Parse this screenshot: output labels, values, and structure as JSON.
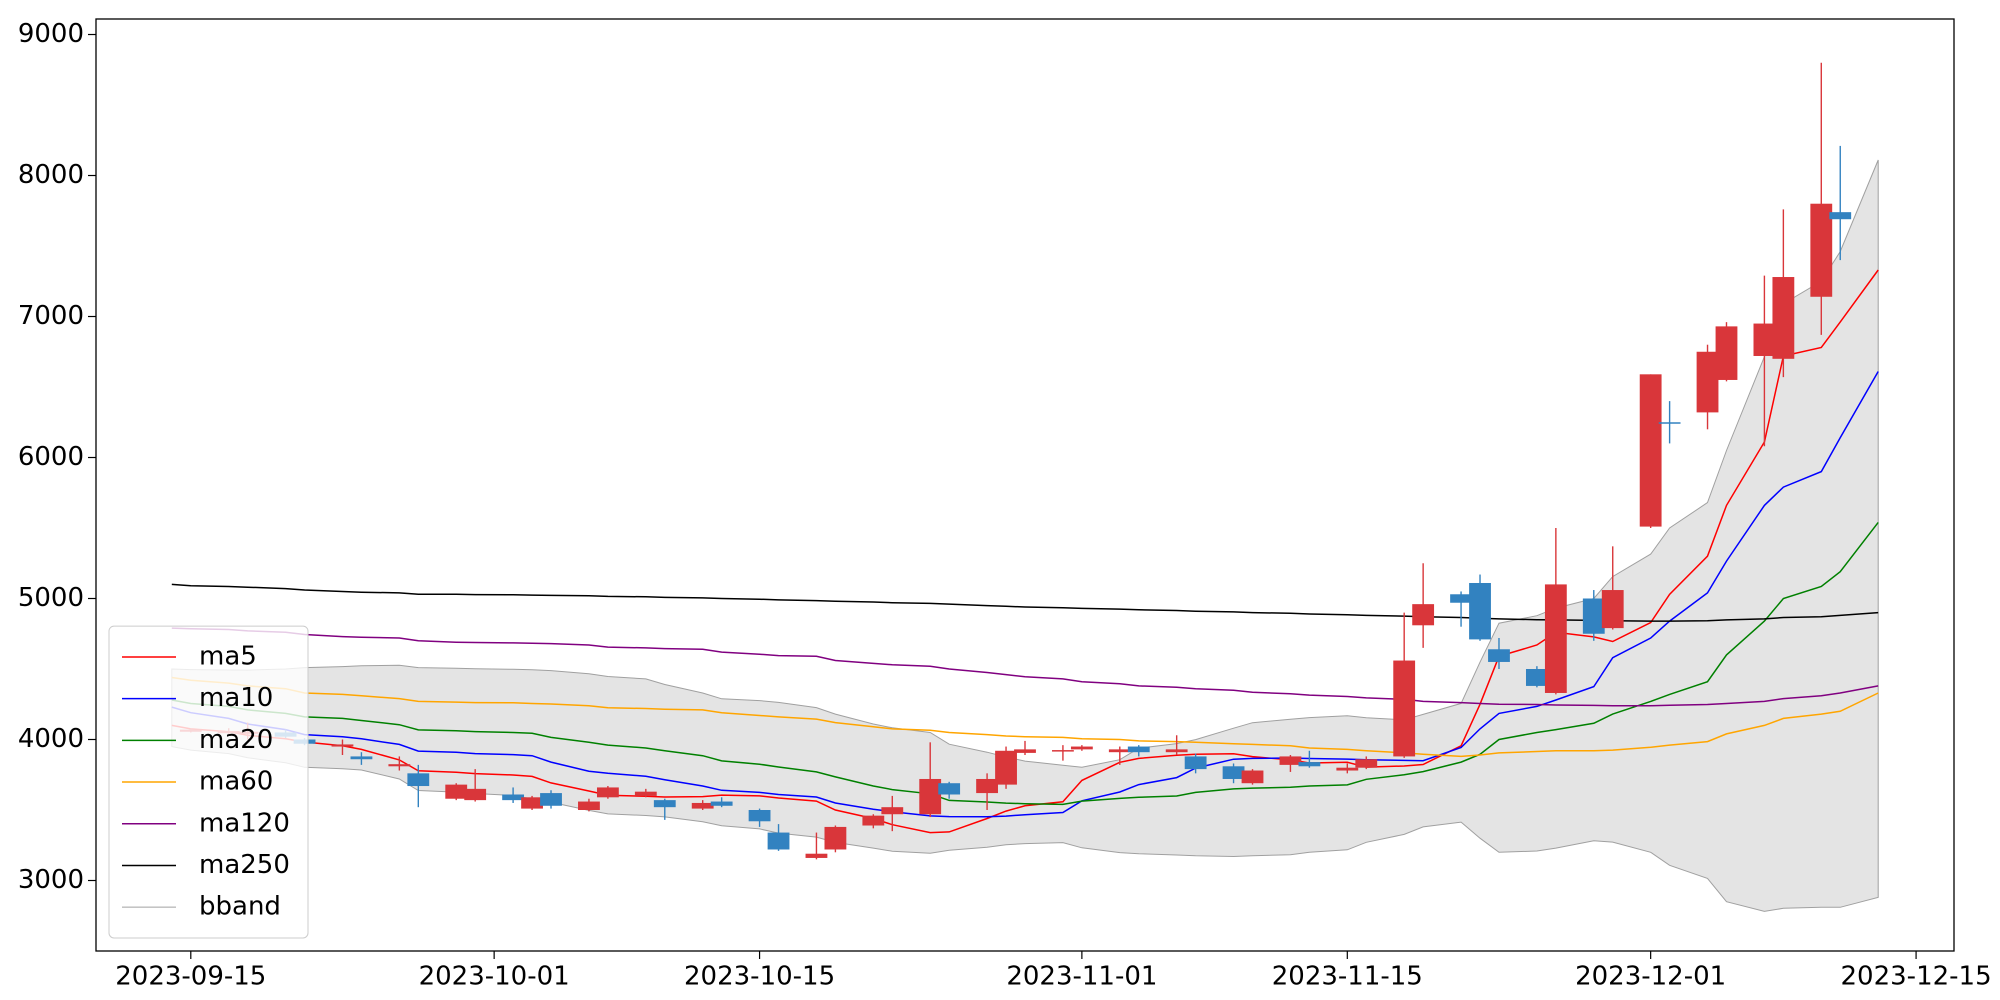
{
  "chart_data": {
    "type": "candlestick",
    "x": [
      "2023-09-14",
      "2023-09-15",
      "2023-09-17",
      "2023-09-18",
      "2023-09-20",
      "2023-09-21",
      "2023-09-23",
      "2023-09-24",
      "2023-09-26",
      "2023-09-27",
      "2023-09-29",
      "2023-09-30",
      "2023-10-02",
      "2023-10-03",
      "2023-10-04",
      "2023-10-06",
      "2023-10-07",
      "2023-10-09",
      "2023-10-10",
      "2023-10-12",
      "2023-10-13",
      "2023-10-15",
      "2023-10-16",
      "2023-10-18",
      "2023-10-19",
      "2023-10-21",
      "2023-10-22",
      "2023-10-24",
      "2023-10-25",
      "2023-10-27",
      "2023-10-28",
      "2023-10-29",
      "2023-10-31",
      "2023-11-01",
      "2023-11-03",
      "2023-11-04",
      "2023-11-06",
      "2023-11-07",
      "2023-11-09",
      "2023-11-10",
      "2023-11-12",
      "2023-11-13",
      "2023-11-15",
      "2023-11-16",
      "2023-11-18",
      "2023-11-19",
      "2023-11-21",
      "2023-11-22",
      "2023-11-23",
      "2023-11-25",
      "2023-11-26",
      "2023-11-28",
      "2023-11-29",
      "2023-12-01",
      "2023-12-02",
      "2023-12-04",
      "2023-12-05",
      "2023-12-07",
      "2023-12-08",
      "2023-12-10",
      "2023-12-11",
      "2023-12-13"
    ],
    "open": [
      null,
      4055,
      4045,
      4040,
      4050,
      4000,
      3950,
      3880,
      3810,
      3760,
      3580,
      3570,
      3610,
      3510,
      3620,
      3500,
      3590,
      3600,
      3570,
      3510,
      3560,
      3500,
      3340,
      3160,
      3220,
      3390,
      3470,
      3470,
      3690,
      3620,
      3680,
      3905,
      3915,
      3930,
      3910,
      3950,
      3910,
      3880,
      3810,
      3690,
      3820,
      3840,
      3780,
      3800,
      3880,
      4810,
      5030,
      5110,
      4640,
      4500,
      4330,
      5000,
      4790,
      5510,
      6250,
      6320,
      6550,
      6720,
      6700,
      7140,
      7740,
      null
    ],
    "high": [
      null,
      4080,
      4080,
      4120,
      4070,
      4010,
      4000,
      3910,
      3880,
      3820,
      3690,
      3790,
      3660,
      3600,
      3640,
      3580,
      3670,
      3650,
      3580,
      3570,
      3590,
      3510,
      3400,
      3340,
      3390,
      3470,
      3600,
      3980,
      3700,
      3760,
      3950,
      3990,
      3960,
      3960,
      3950,
      3960,
      4030,
      3900,
      3830,
      3790,
      3890,
      3920,
      3830,
      3880,
      4900,
      5250,
      5050,
      5170,
      4720,
      4520,
      5500,
      5060,
      5370,
      6590,
      6400,
      6800,
      6960,
      7290,
      7760,
      8800,
      8210,
      null
    ],
    "low": [
      null,
      4050,
      4040,
      4000,
      4010,
      3960,
      3890,
      3820,
      3780,
      3520,
      3570,
      3560,
      3550,
      3500,
      3510,
      3490,
      3580,
      3590,
      3430,
      3500,
      3520,
      3380,
      3210,
      3150,
      3200,
      3370,
      3350,
      3450,
      3580,
      3500,
      3650,
      3890,
      3850,
      3920,
      3820,
      3880,
      3890,
      3760,
      3690,
      3680,
      3770,
      3800,
      3760,
      3790,
      3870,
      4650,
      4800,
      4700,
      4500,
      4370,
      4320,
      4700,
      4780,
      5500,
      6100,
      6200,
      6540,
      6080,
      6570,
      6870,
      7400,
      null
    ],
    "close": [
      null,
      4070,
      4060,
      4055,
      4020,
      3970,
      3965,
      3860,
      3825,
      3670,
      3680,
      3650,
      3570,
      3590,
      3530,
      3560,
      3660,
      3630,
      3520,
      3550,
      3530,
      3420,
      3220,
      3190,
      3380,
      3460,
      3520,
      3720,
      3610,
      3720,
      3920,
      3930,
      3925,
      3950,
      3930,
      3910,
      3930,
      3790,
      3720,
      3780,
      3880,
      3810,
      3800,
      3860,
      4560,
      4960,
      4970,
      4710,
      4550,
      4380,
      5100,
      4750,
      5060,
      6590,
      6240,
      6750,
      6930,
      6950,
      7280,
      7800,
      7690,
      null
    ],
    "up_color": "#d9363a",
    "down_color": "#3282c0",
    "series": [
      {
        "name": "ma5",
        "color": "#ff0000",
        "values": [
          4100,
          4075,
          4055,
          4030,
          4005,
          3982,
          3955,
          3930,
          3855,
          3778,
          3768,
          3758,
          3748,
          3738,
          3692,
          3635,
          3605,
          3597,
          3592,
          3595,
          3606,
          3600,
          3585,
          3563,
          3500,
          3440,
          3396,
          3340,
          3345,
          3440,
          3492,
          3530,
          3558,
          3710,
          3838,
          3866,
          3889,
          3895,
          3899,
          3879,
          3855,
          3833,
          3838,
          3804,
          3812,
          3823,
          3955,
          4250,
          4590,
          4670,
          4760,
          4728,
          4695,
          4830,
          5030,
          5300,
          5660,
          6110,
          6720,
          6780,
          6960,
          7330
        ]
      },
      {
        "name": "ma10",
        "color": "#0000ff",
        "values": [
          4230,
          4190,
          4150,
          4110,
          4070,
          4035,
          4020,
          4005,
          3965,
          3918,
          3910,
          3900,
          3893,
          3885,
          3840,
          3775,
          3760,
          3740,
          3715,
          3670,
          3640,
          3625,
          3610,
          3592,
          3550,
          3505,
          3488,
          3458,
          3453,
          3452,
          3457,
          3467,
          3482,
          3565,
          3628,
          3680,
          3730,
          3797,
          3860,
          3866,
          3869,
          3865,
          3861,
          3856,
          3852,
          3850,
          3943,
          4075,
          4185,
          4235,
          4280,
          4375,
          4580,
          4720,
          4840,
          5040,
          5265,
          5660,
          5790,
          5900,
          6140,
          6610
        ]
      },
      {
        "name": "ma20",
        "color": "#008000",
        "values": [
          4280,
          4255,
          4235,
          4210,
          4185,
          4160,
          4150,
          4135,
          4105,
          4068,
          4062,
          4056,
          4050,
          4044,
          4015,
          3980,
          3960,
          3940,
          3920,
          3885,
          3848,
          3825,
          3805,
          3770,
          3735,
          3670,
          3645,
          3615,
          3568,
          3557,
          3549,
          3545,
          3540,
          3563,
          3582,
          3590,
          3599,
          3625,
          3650,
          3655,
          3661,
          3670,
          3678,
          3718,
          3750,
          3772,
          3840,
          3895,
          4000,
          4050,
          4070,
          4115,
          4180,
          4270,
          4320,
          4410,
          4600,
          4840,
          5000,
          5085,
          5190,
          5540
        ]
      },
      {
        "name": "ma60",
        "color": "#ffa500",
        "values": [
          4440,
          4420,
          4400,
          4380,
          4360,
          4330,
          4320,
          4310,
          4290,
          4270,
          4265,
          4262,
          4260,
          4255,
          4252,
          4240,
          4225,
          4220,
          4215,
          4210,
          4190,
          4170,
          4160,
          4145,
          4120,
          4090,
          4075,
          4065,
          4050,
          4035,
          4025,
          4020,
          4015,
          4005,
          4000,
          3990,
          3985,
          3980,
          3970,
          3965,
          3955,
          3940,
          3930,
          3920,
          3905,
          3895,
          3880,
          3890,
          3905,
          3915,
          3920,
          3920,
          3925,
          3945,
          3960,
          3985,
          4040,
          4100,
          4150,
          4180,
          4200,
          4330
        ]
      },
      {
        "name": "ma120",
        "color": "#800080",
        "values": [
          4790,
          4785,
          4780,
          4770,
          4760,
          4745,
          4730,
          4725,
          4720,
          4700,
          4690,
          4688,
          4685,
          4682,
          4680,
          4670,
          4655,
          4650,
          4645,
          4640,
          4620,
          4605,
          4595,
          4590,
          4560,
          4540,
          4530,
          4520,
          4500,
          4475,
          4460,
          4445,
          4430,
          4410,
          4395,
          4380,
          4370,
          4360,
          4350,
          4335,
          4325,
          4315,
          4305,
          4295,
          4285,
          4270,
          4262,
          4255,
          4250,
          4248,
          4245,
          4242,
          4240,
          4240,
          4243,
          4248,
          4255,
          4270,
          4290,
          4310,
          4330,
          4380
        ]
      },
      {
        "name": "ma250",
        "color": "#000000",
        "values": [
          5100,
          5090,
          5085,
          5080,
          5070,
          5060,
          5050,
          5045,
          5040,
          5030,
          5030,
          5028,
          5026,
          5024,
          5022,
          5020,
          5015,
          5012,
          5008,
          5004,
          5000,
          4995,
          4990,
          4985,
          4980,
          4975,
          4970,
          4965,
          4960,
          4950,
          4945,
          4940,
          4935,
          4930,
          4925,
          4920,
          4915,
          4910,
          4905,
          4900,
          4895,
          4890,
          4885,
          4880,
          4875,
          4870,
          4865,
          4860,
          4855,
          4850,
          4848,
          4845,
          4842,
          4840,
          4840,
          4842,
          4848,
          4855,
          4865,
          4870,
          4880,
          4900
        ]
      },
      {
        "name": "bband",
        "color": "#a0a0a0",
        "fill": "#e4e4e4",
        "upper": [
          4500,
          4496,
          4493,
          4492,
          4500,
          4510,
          4517,
          4523,
          4527,
          4510,
          4506,
          4502,
          4498,
          4494,
          4489,
          4466,
          4447,
          4430,
          4390,
          4330,
          4289,
          4276,
          4263,
          4226,
          4180,
          4110,
          4083,
          4050,
          3967,
          3910,
          3876,
          3847,
          3818,
          3803,
          3857,
          3938,
          3971,
          3999,
          4080,
          4119,
          4143,
          4155,
          4168,
          4154,
          4140,
          4178,
          4256,
          4548,
          4825,
          4878,
          4932,
          5000,
          5155,
          5315,
          5500,
          5680,
          6050,
          6715,
          7091,
          7250,
          7460,
          8110
        ],
        "lower": [
          3950,
          3925,
          3900,
          3870,
          3835,
          3803,
          3792,
          3784,
          3720,
          3638,
          3627,
          3617,
          3603,
          3579,
          3555,
          3497,
          3472,
          3461,
          3451,
          3417,
          3389,
          3366,
          3336,
          3308,
          3270,
          3230,
          3208,
          3193,
          3215,
          3236,
          3253,
          3262,
          3269,
          3232,
          3198,
          3190,
          3181,
          3175,
          3170,
          3176,
          3183,
          3201,
          3218,
          3271,
          3327,
          3380,
          3414,
          3300,
          3200,
          3209,
          3230,
          3282,
          3272,
          3200,
          3108,
          3015,
          2850,
          2781,
          2803,
          2810,
          2810,
          2880
        ]
      }
    ],
    "xlim": [
      "2023-09-10",
      "2023-12-17"
    ],
    "xticks": [
      "2023-09-15",
      "2023-10-01",
      "2023-10-15",
      "2023-11-01",
      "2023-11-15",
      "2023-12-01",
      "2023-12-15"
    ],
    "ylim": [
      2500,
      9110
    ],
    "yticks": [
      3000,
      4000,
      5000,
      6000,
      7000,
      8000,
      9000
    ],
    "legend": "lower left"
  }
}
